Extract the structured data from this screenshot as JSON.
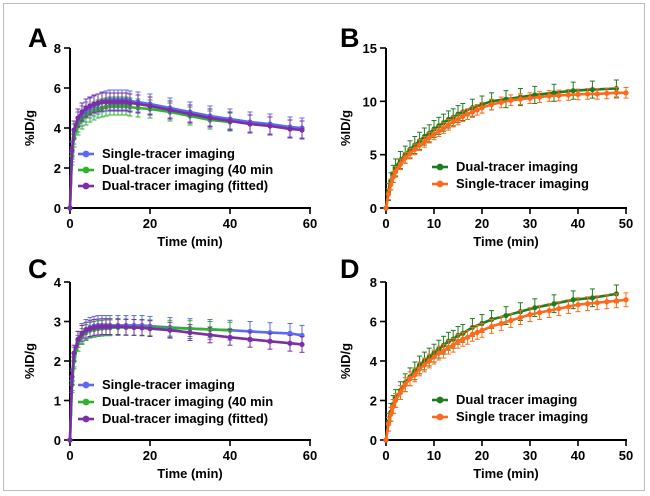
{
  "figure": {
    "colors": {
      "blue": "#5a6cf0",
      "green": "#2fb32f",
      "purple": "#7a2fa5",
      "darkgreen": "#1e7d1e",
      "orange": "#ff6a1a"
    }
  },
  "chart_data": [
    {
      "panel": "A",
      "type": "line",
      "xlabel": "Time (min)",
      "ylabel": "%ID/g",
      "xlim": [
        0,
        60
      ],
      "ylim": [
        0,
        8
      ],
      "xticks": [
        0,
        20,
        40,
        60
      ],
      "yticks": [
        0,
        2,
        4,
        6,
        8
      ],
      "legend_position": "bottom-left",
      "series": [
        {
          "name": "Single-tracer imaging",
          "color": "#5a6cf0",
          "x": [
            0,
            0.5,
            1,
            2,
            3,
            4,
            5,
            6,
            7,
            8,
            9,
            10,
            11,
            12,
            13,
            14,
            15,
            17,
            20,
            25,
            30,
            35,
            40,
            45,
            50,
            55,
            58
          ],
          "y": [
            0,
            2.8,
            3.7,
            4.3,
            4.6,
            4.8,
            5.0,
            5.1,
            5.2,
            5.3,
            5.35,
            5.4,
            5.4,
            5.4,
            5.4,
            5.4,
            5.35,
            5.3,
            5.2,
            5.0,
            4.8,
            4.6,
            4.45,
            4.3,
            4.2,
            4.05,
            4.0
          ],
          "err": 0.5
        },
        {
          "name": "Dual-tracer imaging (40 min",
          "color": "#2fb32f",
          "x": [
            0,
            0.5,
            1,
            2,
            3,
            4,
            5,
            6,
            7,
            8,
            9,
            10,
            11,
            12,
            13,
            14,
            15,
            17,
            20,
            25,
            30,
            35,
            40
          ],
          "y": [
            0,
            2.6,
            3.5,
            4.1,
            4.4,
            4.6,
            4.75,
            4.85,
            4.95,
            5.0,
            5.05,
            5.1,
            5.1,
            5.1,
            5.1,
            5.1,
            5.05,
            5.0,
            4.95,
            4.8,
            4.6,
            4.4,
            4.3
          ],
          "err": 0.45
        },
        {
          "name": "Dual-tracer imaging (fitted)",
          "color": "#7a2fa5",
          "x": [
            0,
            0.5,
            1,
            2,
            3,
            4,
            5,
            6,
            7,
            8,
            9,
            10,
            11,
            12,
            13,
            14,
            15,
            17,
            20,
            25,
            30,
            35,
            40,
            45,
            50,
            55,
            58
          ],
          "y": [
            0,
            2.9,
            3.9,
            4.5,
            4.8,
            5.0,
            5.1,
            5.2,
            5.25,
            5.3,
            5.3,
            5.3,
            5.3,
            5.3,
            5.3,
            5.3,
            5.25,
            5.2,
            5.1,
            4.9,
            4.7,
            4.5,
            4.35,
            4.2,
            4.1,
            3.95,
            3.9
          ],
          "err": 0.45
        }
      ]
    },
    {
      "panel": "B",
      "type": "line",
      "xlabel": "Time (min)",
      "ylabel": "%ID/g",
      "xlim": [
        0,
        50
      ],
      "ylim": [
        0,
        15
      ],
      "xticks": [
        0,
        10,
        20,
        30,
        40,
        50
      ],
      "yticks": [
        0,
        5,
        10,
        15
      ],
      "legend_position": "bottom-right",
      "series": [
        {
          "name": "Dual-tracer imaging",
          "color": "#1e7d1e",
          "x": [
            0,
            0.5,
            1,
            1.5,
            2,
            3,
            4,
            5,
            6,
            7,
            8,
            9,
            10,
            11,
            12,
            13,
            14,
            15,
            16,
            18,
            20,
            22,
            25,
            28,
            31,
            35,
            39,
            43,
            48
          ],
          "y": [
            0,
            1.5,
            2.5,
            3.2,
            3.8,
            4.5,
            5.0,
            5.5,
            5.9,
            6.3,
            6.7,
            7.0,
            7.4,
            7.7,
            8.0,
            8.3,
            8.5,
            8.8,
            9.0,
            9.4,
            9.7,
            10.0,
            10.2,
            10.4,
            10.6,
            10.8,
            11.0,
            11.1,
            11.2
          ],
          "err": 0.8
        },
        {
          "name": "Single-tracer imaging",
          "color": "#ff6a1a",
          "x": [
            0,
            0.5,
            1,
            1.5,
            2,
            3,
            4,
            5,
            6,
            7,
            8,
            9,
            10,
            11,
            12,
            13,
            14,
            15,
            16,
            17,
            18,
            19,
            20,
            22,
            24,
            26,
            28,
            30,
            32,
            34,
            36,
            38,
            40,
            42,
            44,
            46,
            48,
            50
          ],
          "y": [
            0,
            1.3,
            2.2,
            2.9,
            3.4,
            4.1,
            4.7,
            5.1,
            5.5,
            5.9,
            6.2,
            6.6,
            6.9,
            7.2,
            7.5,
            7.8,
            8.1,
            8.3,
            8.6,
            8.8,
            9.0,
            9.2,
            9.4,
            9.7,
            9.9,
            10.1,
            10.2,
            10.3,
            10.4,
            10.5,
            10.55,
            10.6,
            10.65,
            10.7,
            10.7,
            10.75,
            10.8,
            10.8
          ],
          "err": 0.5
        }
      ]
    },
    {
      "panel": "C",
      "type": "line",
      "xlabel": "Time (min)",
      "ylabel": "%ID/g",
      "xlim": [
        0,
        60
      ],
      "ylim": [
        0,
        4
      ],
      "xticks": [
        0,
        20,
        40,
        60
      ],
      "yticks": [
        0,
        1,
        2,
        3,
        4
      ],
      "legend_position": "bottom-left",
      "series": [
        {
          "name": "Single-tracer imaging",
          "color": "#5a6cf0",
          "x": [
            0,
            0.5,
            1,
            2,
            3,
            4,
            5,
            6,
            7,
            8,
            9,
            10,
            12,
            14,
            16,
            18,
            20,
            25,
            30,
            35,
            40,
            45,
            50,
            55,
            58
          ],
          "y": [
            0,
            1.5,
            2.1,
            2.5,
            2.7,
            2.8,
            2.85,
            2.88,
            2.9,
            2.9,
            2.9,
            2.9,
            2.9,
            2.9,
            2.9,
            2.9,
            2.88,
            2.85,
            2.82,
            2.8,
            2.78,
            2.75,
            2.72,
            2.7,
            2.65
          ],
          "err": 0.25
        },
        {
          "name": "Dual-tracer imaging (40 min",
          "color": "#2fb32f",
          "x": [
            0,
            0.5,
            1,
            2,
            3,
            4,
            5,
            6,
            7,
            8,
            9,
            10,
            12,
            14,
            16,
            18,
            20,
            25,
            30,
            35,
            40
          ],
          "y": [
            0,
            1.4,
            2.0,
            2.45,
            2.62,
            2.72,
            2.78,
            2.8,
            2.82,
            2.83,
            2.84,
            2.84,
            2.85,
            2.85,
            2.85,
            2.85,
            2.84,
            2.83,
            2.82,
            2.8,
            2.78
          ],
          "err": 0.2
        },
        {
          "name": "Dual-tracer imaging (fitted)",
          "color": "#7a2fa5",
          "x": [
            0,
            0.5,
            1,
            2,
            3,
            4,
            5,
            6,
            7,
            8,
            9,
            10,
            12,
            14,
            16,
            18,
            20,
            25,
            30,
            35,
            40,
            45,
            50,
            55,
            58
          ],
          "y": [
            0,
            1.6,
            2.2,
            2.55,
            2.7,
            2.78,
            2.82,
            2.85,
            2.86,
            2.87,
            2.87,
            2.87,
            2.87,
            2.86,
            2.85,
            2.84,
            2.82,
            2.78,
            2.72,
            2.66,
            2.6,
            2.55,
            2.5,
            2.45,
            2.42
          ],
          "err": 0.2
        }
      ]
    },
    {
      "panel": "D",
      "type": "line",
      "xlabel": "Time (min)",
      "ylabel": "%ID/g",
      "xlim": [
        0,
        50
      ],
      "ylim": [
        0,
        8
      ],
      "xticks": [
        0,
        10,
        20,
        30,
        40,
        50
      ],
      "yticks": [
        0,
        2,
        4,
        6,
        8
      ],
      "legend_position": "bottom-right",
      "series": [
        {
          "name": "Dual tracer imaging",
          "color": "#1e7d1e",
          "x": [
            0,
            0.5,
            1,
            1.5,
            2,
            3,
            4,
            5,
            6,
            7,
            8,
            9,
            10,
            11,
            12,
            13,
            14,
            15,
            16,
            18,
            20,
            22,
            25,
            28,
            31,
            35,
            39,
            43,
            48
          ],
          "y": [
            0,
            0.9,
            1.4,
            1.8,
            2.1,
            2.5,
            2.9,
            3.2,
            3.5,
            3.8,
            4.0,
            4.2,
            4.4,
            4.6,
            4.8,
            5.0,
            5.1,
            5.3,
            5.4,
            5.7,
            5.9,
            6.1,
            6.3,
            6.5,
            6.7,
            6.9,
            7.1,
            7.2,
            7.4
          ],
          "err": 0.45
        },
        {
          "name": "Single tracer imaging",
          "color": "#ff6a1a",
          "x": [
            0,
            0.5,
            1,
            1.5,
            2,
            3,
            4,
            5,
            6,
            7,
            8,
            9,
            10,
            11,
            12,
            13,
            14,
            15,
            16,
            17,
            18,
            19,
            20,
            22,
            24,
            26,
            28,
            30,
            32,
            34,
            36,
            38,
            40,
            42,
            44,
            46,
            48,
            50
          ],
          "y": [
            0,
            0.8,
            1.3,
            1.7,
            2.0,
            2.4,
            2.8,
            3.1,
            3.3,
            3.6,
            3.8,
            4.0,
            4.2,
            4.4,
            4.5,
            4.7,
            4.8,
            5.0,
            5.1,
            5.2,
            5.35,
            5.45,
            5.55,
            5.75,
            5.9,
            6.05,
            6.2,
            6.35,
            6.45,
            6.55,
            6.65,
            6.75,
            6.85,
            6.9,
            6.95,
            7.0,
            7.05,
            7.1
          ],
          "err": 0.35
        }
      ]
    }
  ]
}
